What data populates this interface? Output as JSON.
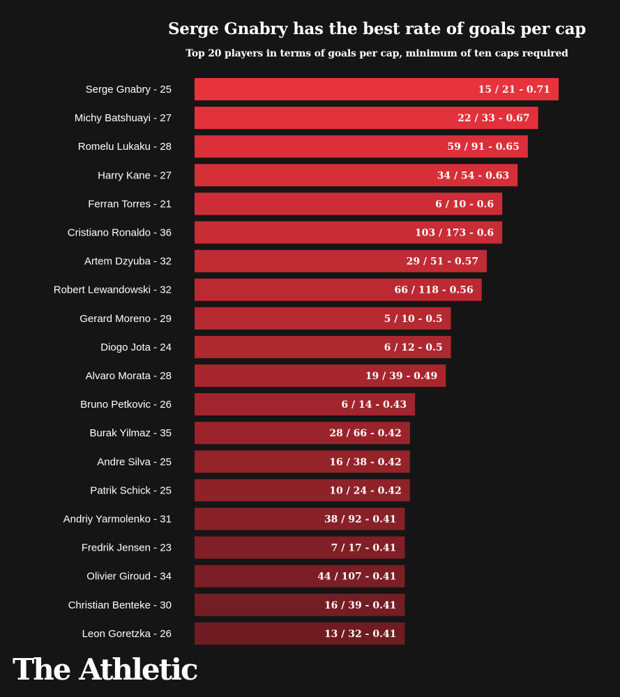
{
  "header": {
    "title": "Serge Gnabry has the best rate of goals per cap",
    "subtitle": "Top 20 players in terms of goals per cap, minimum of ten caps required"
  },
  "brand": {
    "logo_text": "The Athletic"
  },
  "colors": {
    "background": "#151515",
    "bar_top": "#e8323c",
    "bar_bottom": "#6e1c22"
  },
  "chart_data": {
    "type": "bar",
    "orientation": "horizontal",
    "title": "Serge Gnabry has the best rate of goals per cap",
    "subtitle": "Top 20 players in terms of goals per cap, minimum of ten caps required",
    "xlabel": "",
    "ylabel": "",
    "grid": false,
    "legend": "none",
    "categories": [
      "Serge Gnabry - 25",
      "Michy Batshuayi - 27",
      "Romelu Lukaku - 28",
      "Harry Kane - 27",
      "Ferran Torres - 21",
      "Cristiano Ronaldo - 36",
      "Artem Dzyuba - 32",
      "Robert Lewandowski - 32",
      "Gerard Moreno - 29",
      "Diogo Jota - 24",
      "Alvaro Morata - 28",
      "Bruno Petkovic - 26",
      "Burak Yilmaz - 35",
      "Andre Silva - 25",
      "Patrik Schick - 25",
      "Andriy Yarmolenko - 31",
      "Fredrik Jensen - 23",
      "Olivier Giroud - 34",
      "Christian Benteke - 30",
      "Leon Goretzka - 26"
    ],
    "values": [
      0.71,
      0.67,
      0.65,
      0.63,
      0.6,
      0.6,
      0.57,
      0.56,
      0.5,
      0.5,
      0.49,
      0.43,
      0.42,
      0.42,
      0.42,
      0.41,
      0.41,
      0.41,
      0.41,
      0.41
    ],
    "data_labels": [
      "15 / 21 - 0.71",
      "22 / 33 - 0.67",
      "59 / 91 - 0.65",
      "34 / 54 - 0.63",
      "6 / 10 - 0.6",
      "103 / 173 - 0.6",
      "29 / 51 - 0.57",
      "66 / 118 - 0.56",
      "5 / 10 - 0.5",
      "6 / 12 - 0.5",
      "19 / 39 - 0.49",
      "6 / 14 - 0.43",
      "28 / 66 - 0.42",
      "16 / 38 - 0.42",
      "10 / 24 - 0.42",
      "38 / 92 - 0.41",
      "7 / 17 - 0.41",
      "44 / 107 - 0.41",
      "16 / 39 - 0.41",
      "13 / 32 - 0.41"
    ]
  }
}
